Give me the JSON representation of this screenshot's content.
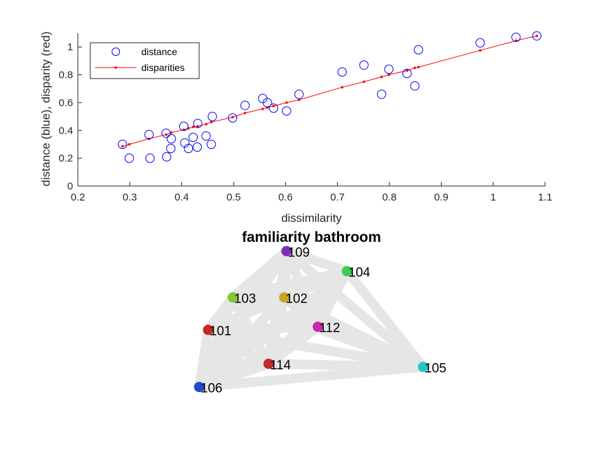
{
  "chart_data": [
    {
      "type": "scatter",
      "xlabel": "dissimilarity",
      "ylabel": "distance (blue), disparity (red)",
      "xlim": [
        0.2,
        1.1
      ],
      "ylim": [
        0,
        1.1
      ],
      "xticks": [
        "0.2",
        "0.3",
        "0.4",
        "0.5",
        "0.6",
        "0.7",
        "0.8",
        "0.9",
        "1",
        "1.1"
      ],
      "yticks": [
        "0",
        "0.2",
        "0.4",
        "0.6",
        "0.8",
        "1"
      ],
      "grid": false,
      "legend_position": "top-left",
      "series": [
        {
          "name": "distance",
          "color": "#0000ff",
          "marker": "open-circle",
          "x": [
            0.286,
            0.299,
            0.337,
            0.339,
            0.37,
            0.371,
            0.379,
            0.38,
            0.404,
            0.406,
            0.413,
            0.422,
            0.43,
            0.431,
            0.447,
            0.457,
            0.459,
            0.498,
            0.522,
            0.556,
            0.565,
            0.577,
            0.602,
            0.626,
            0.709,
            0.751,
            0.785,
            0.799,
            0.834,
            0.849,
            0.856,
            0.975,
            1.044,
            1.084
          ],
          "y": [
            0.3,
            0.2,
            0.37,
            0.2,
            0.38,
            0.21,
            0.27,
            0.34,
            0.43,
            0.31,
            0.27,
            0.35,
            0.28,
            0.45,
            0.36,
            0.3,
            0.5,
            0.49,
            0.58,
            0.63,
            0.6,
            0.56,
            0.54,
            0.66,
            0.82,
            0.87,
            0.66,
            0.84,
            0.81,
            0.72,
            0.98,
            1.03,
            1.07,
            1.08
          ]
        },
        {
          "name": "disparities",
          "color": "#ff0000",
          "marker": "dot-line",
          "x": [
            0.286,
            0.299,
            0.337,
            0.37,
            0.38,
            0.404,
            0.413,
            0.422,
            0.431,
            0.447,
            0.457,
            0.498,
            0.522,
            0.556,
            0.565,
            0.577,
            0.602,
            0.626,
            0.709,
            0.751,
            0.785,
            0.799,
            0.834,
            0.849,
            0.856,
            0.975,
            1.044,
            1.084
          ],
          "y": [
            0.285,
            0.3,
            0.34,
            0.37,
            0.385,
            0.405,
            0.415,
            0.425,
            0.43,
            0.445,
            0.46,
            0.495,
            0.525,
            0.555,
            0.565,
            0.575,
            0.6,
            0.62,
            0.71,
            0.75,
            0.785,
            0.8,
            0.83,
            0.85,
            0.855,
            0.975,
            1.045,
            1.08
          ]
        }
      ]
    },
    {
      "type": "network",
      "title": "familiarity bathroom",
      "edge_color": "#e6e6e6",
      "nodes": [
        {
          "id": "109",
          "x": 0.39,
          "y": 0.98,
          "color": "#7e2fb8"
        },
        {
          "id": "104",
          "x": 0.66,
          "y": 0.85,
          "color": "#3ccc56"
        },
        {
          "id": "103",
          "x": 0.15,
          "y": 0.68,
          "color": "#82c934"
        },
        {
          "id": "102",
          "x": 0.38,
          "y": 0.68,
          "color": "#c9a22a"
        },
        {
          "id": "101",
          "x": 0.04,
          "y": 0.47,
          "color": "#c42828"
        },
        {
          "id": "112",
          "x": 0.53,
          "y": 0.49,
          "color": "#c728b0"
        },
        {
          "id": "114",
          "x": 0.31,
          "y": 0.25,
          "color": "#c42828"
        },
        {
          "id": "105",
          "x": 1.0,
          "y": 0.23,
          "color": "#26c7c7"
        },
        {
          "id": "106",
          "x": 0.0,
          "y": 0.1,
          "color": "#2447c9"
        }
      ]
    }
  ]
}
